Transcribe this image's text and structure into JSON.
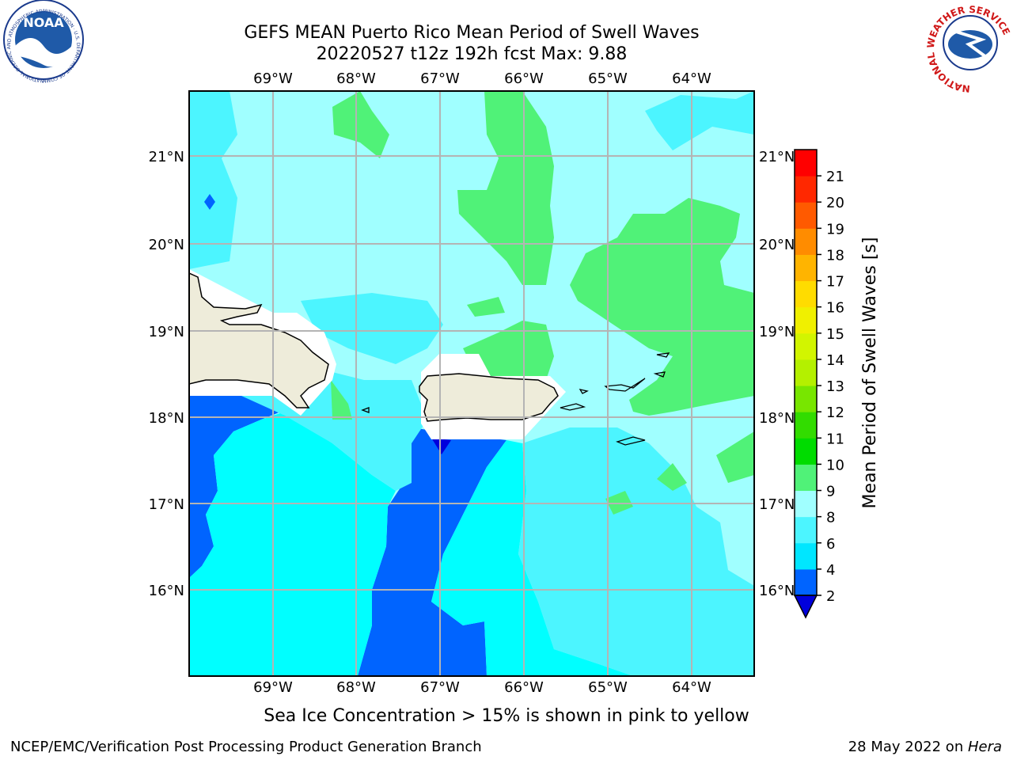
{
  "title": {
    "line1": "GEFS MEAN Puerto Rico Mean Period of Swell Waves",
    "line2": "20220527 t12z 192h fcst   Max: 9.88"
  },
  "map": {
    "lon_labels": [
      "69°W",
      "68°W",
      "67°W",
      "66°W",
      "65°W",
      "64°W"
    ],
    "lat_labels": [
      "21°N",
      "20°N",
      "19°N",
      "18°N",
      "17°N",
      "16°N"
    ],
    "land_color": "#eeecda",
    "grid_color": "#b4b4b4"
  },
  "colorbar": {
    "label": "Mean Period of Swell Waves [s]",
    "tick_labels": [
      "2",
      "4",
      "6",
      "8",
      "9",
      "10",
      "11",
      "12",
      "13",
      "14",
      "15",
      "16",
      "17",
      "18",
      "19",
      "20",
      "21"
    ],
    "colors": [
      "#0064ff",
      "#00e6ff",
      "#4cf5ff",
      "#a0ffff",
      "#50f278",
      "#00dc00",
      "#32dc00",
      "#78e600",
      "#b4f000",
      "#d2f500",
      "#f0f000",
      "#ffdc00",
      "#ffb400",
      "#ff8c00",
      "#ff5a00",
      "#ff2800",
      "#ff0000"
    ],
    "under_color": "#0000dc"
  },
  "caption": "Sea Ice Concentration > 15% is shown in pink to yellow",
  "footer": {
    "left": "NCEP/EMC/Verification Post Processing Product Generation Branch",
    "right_prefix": "28 May 2022 on ",
    "right_italic": "Hera"
  },
  "logos": {
    "noaa": "NOAA",
    "noaa_ring": "NATIONAL OCEANIC AND ATMOSPHERIC ADMINISTRATION · U.S. DEPARTMENT OF COMMERCE",
    "nws_ring": "NATIONAL WEATHER SERVICE"
  }
}
